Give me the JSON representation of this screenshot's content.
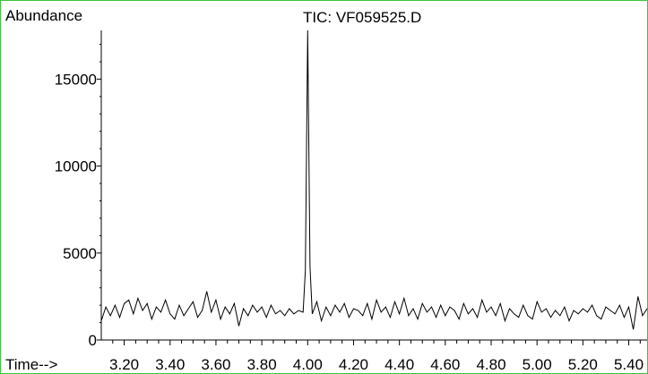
{
  "chart_data": {
    "type": "line",
    "title": "TIC: VF059525.D",
    "ylabel": "Abundance",
    "xlabel": "Time-->",
    "xlim": [
      3.1,
      5.48
    ],
    "ylim": [
      0,
      17800
    ],
    "x_ticks": [
      3.2,
      3.4,
      3.6,
      3.8,
      4.0,
      4.2,
      4.4,
      4.6,
      4.8,
      5.0,
      5.2,
      5.4
    ],
    "x_tick_labels": [
      "3.20",
      "3.40",
      "3.60",
      "3.80",
      "4.00",
      "4.20",
      "4.40",
      "4.60",
      "4.80",
      "5.00",
      "5.20",
      "5.40"
    ],
    "y_ticks": [
      0,
      5000,
      10000,
      15000
    ],
    "y_tick_labels": [
      "0",
      "5000",
      "10000",
      "15000"
    ],
    "grid": false,
    "colors": {
      "frame": "#3cc43c",
      "trace": "#000000"
    },
    "series": [
      {
        "x": [
          3.1,
          3.12,
          3.14,
          3.16,
          3.18,
          3.2,
          3.22,
          3.24,
          3.26,
          3.28,
          3.3,
          3.32,
          3.34,
          3.36,
          3.38,
          3.4,
          3.42,
          3.44,
          3.46,
          3.48,
          3.5,
          3.52,
          3.54,
          3.56,
          3.58,
          3.6,
          3.62,
          3.64,
          3.66,
          3.68,
          3.7,
          3.72,
          3.74,
          3.76,
          3.78,
          3.8,
          3.82,
          3.84,
          3.86,
          3.88,
          3.9,
          3.92,
          3.94,
          3.96,
          3.98,
          3.99,
          4.0,
          4.01,
          4.02,
          4.04,
          4.06,
          4.08,
          4.1,
          4.12,
          4.14,
          4.16,
          4.18,
          4.2,
          4.22,
          4.24,
          4.26,
          4.28,
          4.3,
          4.32,
          4.34,
          4.36,
          4.38,
          4.4,
          4.42,
          4.44,
          4.46,
          4.48,
          4.5,
          4.52,
          4.54,
          4.56,
          4.58,
          4.6,
          4.62,
          4.64,
          4.66,
          4.68,
          4.7,
          4.72,
          4.74,
          4.76,
          4.78,
          4.8,
          4.82,
          4.84,
          4.86,
          4.88,
          4.9,
          4.92,
          4.94,
          4.96,
          4.98,
          5.0,
          5.02,
          5.04,
          5.06,
          5.08,
          5.1,
          5.12,
          5.14,
          5.16,
          5.18,
          5.2,
          5.22,
          5.24,
          5.26,
          5.28,
          5.3,
          5.32,
          5.34,
          5.36,
          5.38,
          5.4,
          5.42,
          5.44,
          5.46,
          5.48
        ],
        "y": [
          1100,
          1900,
          1400,
          2000,
          1300,
          2100,
          2300,
          1500,
          2400,
          1700,
          2100,
          1200,
          1900,
          1600,
          2300,
          1500,
          1200,
          2000,
          1400,
          1800,
          2200,
          1300,
          1700,
          2800,
          1600,
          2300,
          1200,
          1900,
          1500,
          2100,
          800,
          1800,
          1400,
          2000,
          1600,
          1900,
          1300,
          2000,
          1500,
          1700,
          1400,
          1800,
          1500,
          1700,
          1600,
          4000,
          17800,
          4200,
          1500,
          2200,
          1100,
          1900,
          1400,
          2000,
          1600,
          2100,
          1300,
          1800,
          1700,
          1400,
          2100,
          1200,
          2300,
          1600,
          1900,
          1300,
          2200,
          1500,
          2400,
          1400,
          1800,
          1200,
          2100,
          1600,
          1900,
          1300,
          2000,
          1400,
          1900,
          1700,
          1200,
          2100,
          1500,
          1800,
          1300,
          2300,
          1600,
          1900,
          1400,
          2100,
          1100,
          1800,
          1500,
          1300,
          2000,
          1400,
          1200,
          2200,
          1600,
          1800,
          1300,
          1700,
          1400,
          1900,
          1100,
          1700,
          1500,
          1800,
          1600,
          2000,
          1400,
          1200,
          1900,
          1700,
          1500,
          2000,
          1300,
          1900,
          600,
          2500,
          1400,
          1800
        ]
      }
    ]
  }
}
